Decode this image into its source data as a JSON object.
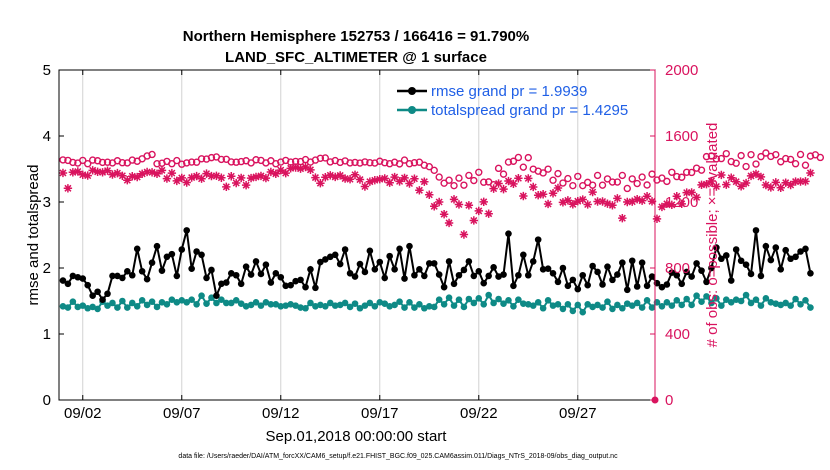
{
  "chart_data": {
    "type": "line",
    "title": "Northern Hemisphere 152753 / 166416 = 91.790%",
    "subtitle": "LAND_SFC_ALTIMETER @ 1 surface",
    "xlabel": "Sep.01,2018 00:00:00 start",
    "ylabel_left": "rmse and totalspread",
    "ylabel_right": "# of obs: o=possible; ×=evaluated",
    "footer": "data file: /Users/raeder/DAI/ATM_forcXX/CAM6_setup/f.e21.FHIST_BGC.f09_025.CAM6assim.011/Diags_NTrS_2018-09/obs_diag_output.nc",
    "x_tick_labels": [
      "09/02",
      "09/07",
      "09/12",
      "09/17",
      "09/22",
      "09/27"
    ],
    "x_ticks": [
      2,
      7,
      12,
      17,
      22,
      27
    ],
    "xlim": [
      0.8,
      30.9
    ],
    "ylim_left": [
      0,
      5
    ],
    "y_ticks_left": [
      "0",
      "1",
      "2",
      "3",
      "4",
      "5"
    ],
    "ylim_right": [
      0,
      2000
    ],
    "y_ticks_right": [
      "0",
      "400",
      "800",
      "1200",
      "1600",
      "2000"
    ],
    "colors": {
      "rmse": "#000000",
      "spread": "#0e8a86",
      "obs": "#d9135e",
      "legend_text": "#1f5fe6"
    },
    "legend": [
      {
        "label": "rmse grand pr = 1.9939",
        "color": "#000000"
      },
      {
        "label": "totalspread grand pr = 1.4295",
        "color": "#0e8a86"
      }
    ],
    "x_start": 1.0,
    "x_step": 0.25,
    "series": [
      {
        "name": "rmse",
        "axis": "left",
        "values": [
          1.81,
          1.76,
          1.88,
          1.86,
          1.84,
          1.74,
          1.58,
          1.64,
          1.52,
          1.61,
          1.88,
          1.88,
          1.85,
          1.95,
          1.89,
          2.29,
          1.95,
          1.83,
          2.08,
          2.33,
          1.96,
          2.17,
          2.21,
          1.88,
          2.28,
          2.57,
          1.99,
          2.25,
          2.2,
          1.85,
          1.97,
          1.58,
          1.76,
          1.78,
          1.92,
          1.89,
          1.76,
          2.02,
          1.9,
          2.1,
          1.91,
          2.05,
          1.78,
          1.92,
          1.86,
          1.73,
          1.74,
          1.8,
          1.82,
          1.71,
          1.98,
          1.7,
          2.09,
          2.13,
          2.17,
          2.2,
          2.06,
          2.28,
          1.92,
          1.87,
          2.06,
          1.94,
          2.26,
          1.98,
          2.09,
          1.85,
          2.18,
          1.98,
          2.29,
          1.84,
          2.33,
          1.89,
          1.98,
          1.88,
          2.07,
          2.07,
          1.9,
          1.71,
          2.1,
          1.76,
          1.89,
          1.97,
          2.1,
          1.88,
          1.95,
          1.77,
          1.88,
          2.01,
          1.87,
          1.9,
          2.52,
          1.73,
          1.89,
          2.2,
          1.89,
          2.1,
          2.43,
          1.98,
          1.99,
          1.92,
          1.79,
          2.0,
          1.73,
          1.82,
          1.68,
          1.89,
          1.74,
          2.03,
          1.94,
          1.75,
          2.02,
          1.82,
          1.9,
          2.08,
          1.67,
          2.11,
          1.72,
          2.08,
          1.73,
          1.87,
          1.77,
          1.71,
          1.75,
          1.93,
          1.89,
          1.76,
          1.94,
          1.87,
          2.07,
          1.96,
          1.79,
          2.0,
          2.31,
          2.14,
          2.19,
          1.81,
          2.28,
          2.11,
          2.05,
          1.91,
          2.57,
          1.88,
          2.33,
          2.12,
          2.31,
          1.98,
          2.27,
          2.14,
          2.17,
          2.25,
          2.29,
          1.92
        ]
      },
      {
        "name": "totalspread",
        "axis": "left",
        "values": [
          1.42,
          1.4,
          1.49,
          1.41,
          1.43,
          1.39,
          1.41,
          1.38,
          1.49,
          1.43,
          1.47,
          1.4,
          1.5,
          1.4,
          1.47,
          1.42,
          1.51,
          1.44,
          1.49,
          1.41,
          1.48,
          1.45,
          1.52,
          1.48,
          1.51,
          1.48,
          1.52,
          1.45,
          1.58,
          1.46,
          1.55,
          1.47,
          1.52,
          1.47,
          1.47,
          1.51,
          1.46,
          1.42,
          1.44,
          1.48,
          1.43,
          1.48,
          1.45,
          1.45,
          1.42,
          1.43,
          1.45,
          1.43,
          1.4,
          1.39,
          1.47,
          1.42,
          1.44,
          1.42,
          1.47,
          1.43,
          1.44,
          1.47,
          1.41,
          1.46,
          1.39,
          1.43,
          1.47,
          1.42,
          1.48,
          1.46,
          1.42,
          1.44,
          1.49,
          1.4,
          1.48,
          1.4,
          1.45,
          1.39,
          1.42,
          1.41,
          1.52,
          1.45,
          1.55,
          1.43,
          1.52,
          1.41,
          1.53,
          1.47,
          1.54,
          1.45,
          1.59,
          1.47,
          1.53,
          1.46,
          1.51,
          1.42,
          1.52,
          1.46,
          1.45,
          1.43,
          1.48,
          1.39,
          1.51,
          1.43,
          1.45,
          1.38,
          1.45,
          1.35,
          1.44,
          1.33,
          1.45,
          1.41,
          1.44,
          1.4,
          1.49,
          1.38,
          1.44,
          1.39,
          1.46,
          1.43,
          1.47,
          1.4,
          1.51,
          1.4,
          1.48,
          1.42,
          1.48,
          1.43,
          1.51,
          1.44,
          1.53,
          1.44,
          1.58,
          1.49,
          1.57,
          1.47,
          1.54,
          1.43,
          1.52,
          1.48,
          1.52,
          1.5,
          1.59,
          1.47,
          1.52,
          1.43,
          1.54,
          1.48,
          1.46,
          1.44,
          1.47,
          1.43,
          1.53,
          1.45,
          1.51,
          1.4
        ]
      },
      {
        "name": "obs_possible",
        "axis": "right",
        "marker": "o",
        "values": [
          1455,
          1452,
          1440,
          1436,
          1452,
          1432,
          1454,
          1450,
          1440,
          1441,
          1437,
          1450,
          1438,
          1437,
          1454,
          1447,
          1462,
          1479,
          1488,
          1432,
          1435,
          1446,
          1432,
          1451,
          1429,
          1437,
          1442,
          1441,
          1462,
          1460,
          1469,
          1473,
          1458,
          1459,
          1443,
          1441,
          1445,
          1450,
          1437,
          1456,
          1452,
          1437,
          1450,
          1432,
          1442,
          1452,
          1442,
          1446,
          1445,
          1457,
          1442,
          1454,
          1465,
          1467,
          1443,
          1451,
          1440,
          1449,
          1437,
          1440,
          1436,
          1443,
          1438,
          1436,
          1447,
          1438,
          1432,
          1441,
          1431,
          1454,
          1432,
          1438,
          1441,
          1423,
          1414,
          1392,
          1351,
          1314,
          1332,
          1299,
          1345,
          1302,
          1361,
          1330,
          1380,
          1320,
          1322,
          1305,
          1404,
          1369,
          1442,
          1447,
          1470,
          1411,
          1469,
          1399,
          1387,
          1376,
          1399,
          1332,
          1372,
          1315,
          1342,
          1299,
          1355,
          1299,
          1319,
          1302,
          1361,
          1302,
          1340,
          1321,
          1321,
          1361,
          1282,
          1340,
          1312,
          1351,
          1303,
          1369,
          1333,
          1345,
          1325,
          1380,
          1354,
          1350,
          1380,
          1379,
          1405,
          1393,
          1475,
          1479,
          1461,
          1463,
          1493,
          1445,
          1435,
          1481,
          1415,
          1487,
          1430,
          1475,
          1497,
          1476,
          1487,
          1444,
          1463,
          1458,
          1432,
          1488,
          1423,
          1478,
          1486,
          1470
        ]
      },
      {
        "name": "obs_evaluated",
        "axis": "right",
        "marker": "x",
        "values": [
          1376,
          1283,
          1380,
          1385,
          1365,
          1360,
          1392,
          1383,
          1380,
          1390,
          1366,
          1375,
          1359,
          1332,
          1356,
          1351,
          1371,
          1382,
          1380,
          1371,
          1392,
          1342,
          1375,
          1328,
          1346,
          1318,
          1348,
          1357,
          1341,
          1372,
          1357,
          1359,
          1347,
          1292,
          1356,
          1315,
          1346,
          1302,
          1345,
          1352,
          1358,
          1345,
          1382,
          1371,
          1393,
          1375,
          1404,
          1409,
          1402,
          1412,
          1395,
          1348,
          1314,
          1350,
          1362,
          1352,
          1361,
          1342,
          1338,
          1365,
          1336,
          1294,
          1323,
          1332,
          1338,
          1343,
          1317,
          1351,
          1325,
          1346,
          1312,
          1341,
          1271,
          1323,
          1244,
          1174,
          1200,
          1126,
          1073,
          1216,
          1185,
          1003,
          1180,
          1088,
          1146,
          1201,
          1129,
          1281,
          1312,
          1278,
          1327,
          1310,
          1344,
          1236,
          1343,
          1291,
          1241,
          1247,
          1188,
          1253,
          1285,
          1198,
          1210,
          1186,
          1205,
          1215,
          1185,
          1260,
          1203,
          1203,
          1190,
          1180,
          1222,
          1102,
          1200,
          1202,
          1217,
          1208,
          1235,
          1204,
          1098,
          1170,
          1189,
          1183,
          1235,
          1189,
          1257,
          1258,
          1228,
          1304,
          1308,
          1327,
          1294,
          1364,
          1305,
          1347,
          1323,
          1295,
          1315,
          1358,
          1370,
          1352,
          1303,
          1288,
          1319,
          1286,
          1317,
          1303,
          1324,
          1324,
          1325,
          1376
        ]
      }
    ]
  }
}
